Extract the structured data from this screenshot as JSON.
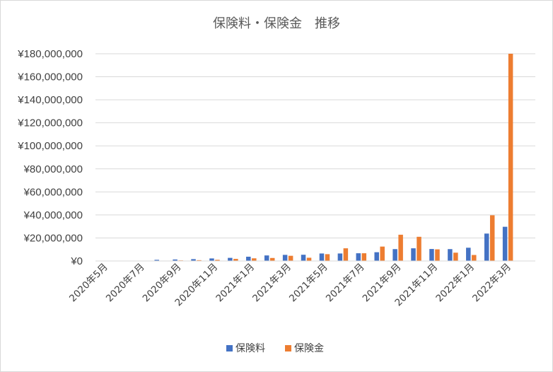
{
  "chart_data": {
    "type": "bar",
    "title": "保険料・保険金　推移",
    "xlabel": "",
    "ylabel": "",
    "ylim": [
      0,
      180000000
    ],
    "yticks": [
      0,
      20000000,
      40000000,
      60000000,
      80000000,
      100000000,
      120000000,
      140000000,
      160000000,
      180000000
    ],
    "ytick_labels": [
      "¥0",
      "¥20,000,000",
      "¥40,000,000",
      "¥60,000,000",
      "¥80,000,000",
      "¥100,000,000",
      "¥120,000,000",
      "¥140,000,000",
      "¥160,000,000",
      "¥180,000,000"
    ],
    "categories": [
      "2020年5月",
      "2020年6月",
      "2020年7月",
      "2020年8月",
      "2020年9月",
      "2020年10月",
      "2020年11月",
      "2020年12月",
      "2021年1月",
      "2021年2月",
      "2021年3月",
      "2021年4月",
      "2021年5月",
      "2021年6月",
      "2021年7月",
      "2021年8月",
      "2021年9月",
      "2021年10月",
      "2021年11月",
      "2021年12月",
      "2022年1月",
      "2022年2月",
      "2022年3月",
      "2022年4月"
    ],
    "category_labels_shown": [
      "2020年5月",
      "",
      "2020年7月",
      "",
      "2020年9月",
      "",
      "2020年11月",
      "",
      "2021年1月",
      "",
      "2021年3月",
      "",
      "2021年5月",
      "",
      "2021年7月",
      "",
      "2021年9月",
      "",
      "2021年11月",
      "",
      "2022年1月",
      "",
      "2022年3月",
      ""
    ],
    "series": [
      {
        "name": "保険料",
        "color": "#4472c4",
        "values": [
          0,
          0,
          300000,
          1000000,
          1300000,
          1600000,
          2200000,
          2700000,
          3700000,
          4800000,
          5300000,
          5400000,
          6500000,
          6500000,
          6700000,
          7600000,
          10300000,
          11000000,
          10400000,
          10300000,
          11500000,
          23800000,
          29700000,
          0
        ]
      },
      {
        "name": "保険金",
        "color": "#ed7d31",
        "values": [
          0,
          0,
          0,
          0,
          500000,
          700000,
          1000000,
          1800000,
          2300000,
          2600000,
          4500000,
          2800000,
          5900000,
          11000000,
          6700000,
          12500000,
          22800000,
          21000000,
          10100000,
          7200000,
          5200000,
          39700000,
          180000000,
          0
        ]
      }
    ],
    "legend": "bottom",
    "grid": true
  }
}
